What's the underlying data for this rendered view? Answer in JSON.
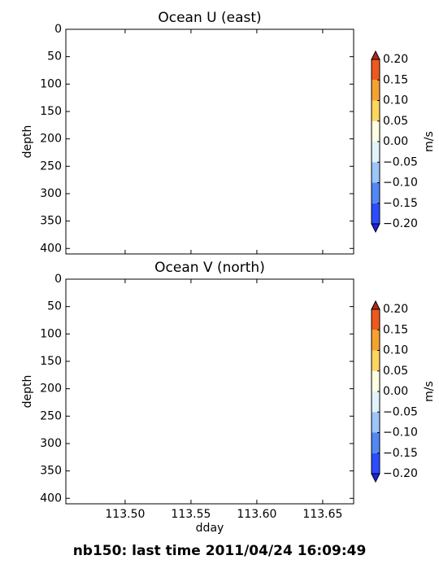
{
  "figure_title": "nb150: last time 2011/04/24 16:09:49",
  "chart_data": [
    {
      "type": "contour",
      "title": "Ocean U (east)",
      "y_label": "depth",
      "ylim": [
        410,
        0
      ],
      "yticks": [
        0,
        50,
        100,
        150,
        200,
        250,
        300,
        350,
        400
      ],
      "xlim": [
        113.455,
        113.6735
      ],
      "xticks": [
        113.5,
        113.55,
        113.6,
        113.65
      ],
      "show_xticklabels": false,
      "colorbar": {
        "label": "m/s",
        "levels": [
          -0.2,
          -0.15,
          -0.1,
          -0.05,
          0,
          0.05,
          0.1,
          0.15,
          0.2
        ],
        "colors": [
          "#2b4cff",
          "#5288f6",
          "#9cc6f7",
          "#e2f2fb",
          "#fffde2",
          "#fcd65e",
          "#f6a232",
          "#ee5a1c"
        ],
        "under_color": "#1d22e8",
        "over_color": "#b3281a",
        "ticks": [
          {
            "value": 0.2,
            "label": "0.20"
          },
          {
            "value": 0.15,
            "label": "0.15"
          },
          {
            "value": 0.1,
            "label": "0.10"
          },
          {
            "value": 0.05,
            "label": "0.05"
          },
          {
            "value": 0,
            "label": "0.00"
          },
          {
            "value": -0.05,
            "label": "−0.05"
          },
          {
            "value": -0.1,
            "label": "−0.10"
          },
          {
            "value": -0.15,
            "label": "−0.15"
          },
          {
            "value": -0.2,
            "label": "−0.20"
          }
        ]
      }
    },
    {
      "type": "contour",
      "title": "Ocean V (north)",
      "y_label": "depth",
      "x_label": "dday",
      "ylim": [
        410,
        0
      ],
      "yticks": [
        0,
        50,
        100,
        150,
        200,
        250,
        300,
        350,
        400
      ],
      "xlim": [
        113.455,
        113.6735
      ],
      "xticks": [
        {
          "value": 113.5,
          "label": "113.50"
        },
        {
          "value": 113.55,
          "label": "113.55"
        },
        {
          "value": 113.6,
          "label": "113.60"
        },
        {
          "value": 113.65,
          "label": "113.65"
        }
      ],
      "show_xticklabels": true,
      "colorbar": {
        "label": "m/s",
        "levels": [
          -0.2,
          -0.15,
          -0.1,
          -0.05,
          0,
          0.05,
          0.1,
          0.15,
          0.2
        ],
        "colors": [
          "#2b4cff",
          "#5288f6",
          "#9cc6f7",
          "#e2f2fb",
          "#fffde2",
          "#fcd65e",
          "#f6a232",
          "#ee5a1c"
        ],
        "under_color": "#1d22e8",
        "over_color": "#b3281a",
        "ticks": [
          {
            "value": 0.2,
            "label": "0.20"
          },
          {
            "value": 0.15,
            "label": "0.15"
          },
          {
            "value": 0.1,
            "label": "0.10"
          },
          {
            "value": 0.05,
            "label": "0.05"
          },
          {
            "value": 0,
            "label": "0.00"
          },
          {
            "value": -0.05,
            "label": "−0.05"
          },
          {
            "value": -0.1,
            "label": "−0.10"
          },
          {
            "value": -0.15,
            "label": "−0.15"
          },
          {
            "value": -0.2,
            "label": "−0.20"
          }
        ]
      }
    }
  ]
}
